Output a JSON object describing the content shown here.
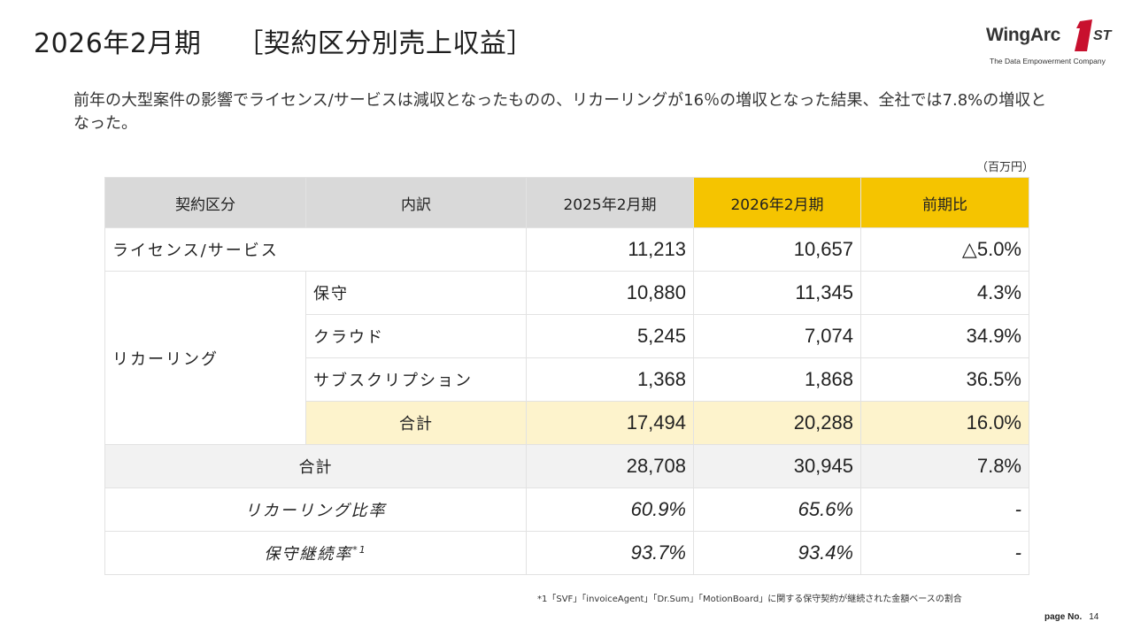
{
  "title": {
    "main": "2026年2月期",
    "sub": "［契約区分別売上収益］"
  },
  "logo": {
    "wordmark": "WingArc",
    "mark": "1",
    "suffix": "ST",
    "tagline": "The Data Empowerment Company"
  },
  "summary": "前年の大型案件の影響でライセンス/サービスは減収となったものの、リカーリングが16％の増収となった結果、全社では7.8%の増収となった。",
  "unit": "（百万円）",
  "table": {
    "headers": [
      "契約区分",
      "内訳",
      "2025年2月期",
      "2026年2月期",
      "前期比"
    ],
    "license": {
      "label": "ライセンス/サービス",
      "fy2025": "11,213",
      "fy2026": "10,657",
      "yoy": "△5.0%"
    },
    "recurring": {
      "label": "リカーリング",
      "rows": [
        {
          "item": "保守",
          "fy2025": "10,880",
          "fy2026": "11,345",
          "yoy": "4.3%"
        },
        {
          "item": "クラウド",
          "fy2025": "5,245",
          "fy2026": "7,074",
          "yoy": "34.9%"
        },
        {
          "item": "サブスクリプション",
          "fy2025": "1,368",
          "fy2026": "1,868",
          "yoy": "36.5%"
        }
      ],
      "subtotal": {
        "label": "合計",
        "fy2025": "17,494",
        "fy2026": "20,288",
        "yoy": "16.0%"
      }
    },
    "total": {
      "label": "合計",
      "fy2025": "28,708",
      "fy2026": "30,945",
      "yoy": "7.8%"
    },
    "recurring_ratio": {
      "label": "リカーリング比率",
      "fy2025": "60.9%",
      "fy2026": "65.6%",
      "yoy": "-"
    },
    "maintenance_rate": {
      "label": "保守継続率",
      "note_mark": "*1",
      "fy2025": "93.7%",
      "fy2026": "93.4%",
      "yoy": "-"
    }
  },
  "footnote": "*1「SVF」「invoiceAgent」「Dr.Sum」「MotionBoard」に関する保守契約が継続された金額ベースの割合",
  "page": {
    "label": "page No.",
    "number": "14"
  },
  "colors": {
    "header_gray": "#d9d9d9",
    "highlight": "#f5c400",
    "subtotal_fill": "#fdf3cc",
    "total_fill": "#f2f2f2",
    "logo_red": "#c8102e"
  }
}
